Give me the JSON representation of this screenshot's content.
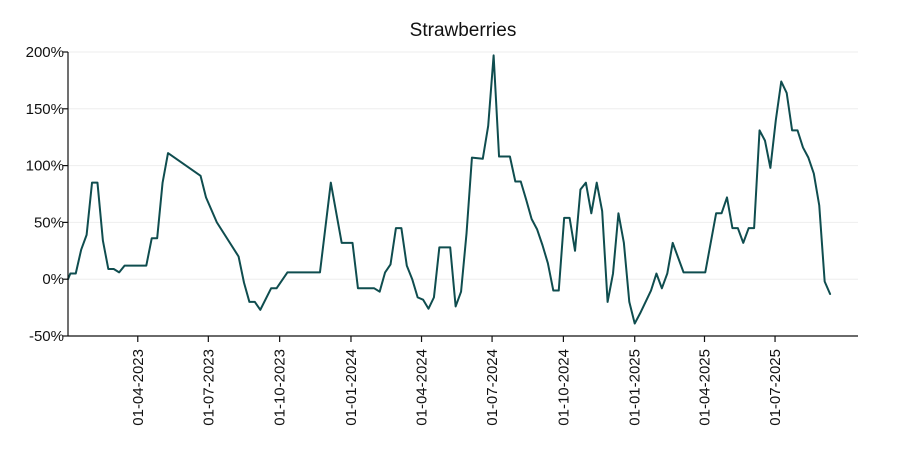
{
  "chart_data": {
    "type": "line",
    "title": "Strawberries",
    "xlabel": "",
    "ylabel": "",
    "y_unit": "%",
    "ylim": [
      -50,
      200
    ],
    "xlim": [
      "2023-01-01",
      "2025-10-16"
    ],
    "grid": {
      "horizontal": true,
      "vertical": false
    },
    "color": "#0f4d4f",
    "y_ticks": [
      {
        "value": -50,
        "label": "-50%"
      },
      {
        "value": 0,
        "label": "0%"
      },
      {
        "value": 50,
        "label": "50%"
      },
      {
        "value": 100,
        "label": "100%"
      },
      {
        "value": 150,
        "label": "150%"
      },
      {
        "value": 200,
        "label": "200%"
      }
    ],
    "x_ticks": [
      {
        "date": "2023-04-01",
        "label": "01-04-2023"
      },
      {
        "date": "2023-07-01",
        "label": "01-07-2023"
      },
      {
        "date": "2023-10-01",
        "label": "01-10-2023"
      },
      {
        "date": "2024-01-01",
        "label": "01-01-2024"
      },
      {
        "date": "2024-04-01",
        "label": "01-04-2024"
      },
      {
        "date": "2024-07-01",
        "label": "01-07-2024"
      },
      {
        "date": "2024-10-01",
        "label": "01-10-2024"
      },
      {
        "date": "2025-01-01",
        "label": "01-01-2025"
      },
      {
        "date": "2025-04-01",
        "label": "01-04-2025"
      },
      {
        "date": "2025-07-01",
        "label": "01-07-2025"
      }
    ],
    "series": [
      {
        "points": [
          [
            "2023-01-01",
            0
          ],
          [
            "2023-01-04",
            5
          ],
          [
            "2023-01-11",
            5
          ],
          [
            "2023-01-18",
            26
          ],
          [
            "2023-01-25",
            39
          ],
          [
            "2023-02-01",
            85
          ],
          [
            "2023-02-08",
            85
          ],
          [
            "2023-02-15",
            34
          ],
          [
            "2023-02-22",
            9
          ],
          [
            "2023-03-01",
            9
          ],
          [
            "2023-03-08",
            6
          ],
          [
            "2023-03-15",
            12
          ],
          [
            "2023-03-22",
            12
          ],
          [
            "2023-04-12",
            12
          ],
          [
            "2023-04-19",
            36
          ],
          [
            "2023-04-26",
            36
          ],
          [
            "2023-05-03",
            85
          ],
          [
            "2023-05-10",
            111
          ],
          [
            "2023-06-21",
            91
          ],
          [
            "2023-06-28",
            72
          ],
          [
            "2023-07-12",
            50
          ],
          [
            "2023-08-09",
            20
          ],
          [
            "2023-08-16",
            -3
          ],
          [
            "2023-08-23",
            -20
          ],
          [
            "2023-08-30",
            -20
          ],
          [
            "2023-09-06",
            -27
          ],
          [
            "2023-09-20",
            -8
          ],
          [
            "2023-09-27",
            -8
          ],
          [
            "2023-10-11",
            6
          ],
          [
            "2023-11-22",
            6
          ],
          [
            "2023-12-06",
            85
          ],
          [
            "2023-12-20",
            32
          ],
          [
            "2024-01-03",
            32
          ],
          [
            "2024-01-10",
            -8
          ],
          [
            "2024-01-31",
            -8
          ],
          [
            "2024-02-07",
            -11
          ],
          [
            "2024-02-14",
            6
          ],
          [
            "2024-02-21",
            13
          ],
          [
            "2024-02-28",
            45
          ],
          [
            "2024-03-06",
            45
          ],
          [
            "2024-03-13",
            12
          ],
          [
            "2024-03-20",
            0
          ],
          [
            "2024-03-27",
            -16
          ],
          [
            "2024-04-03",
            -18
          ],
          [
            "2024-04-10",
            -26
          ],
          [
            "2024-04-17",
            -16
          ],
          [
            "2024-04-24",
            28
          ],
          [
            "2024-05-08",
            28
          ],
          [
            "2024-05-15",
            -24
          ],
          [
            "2024-05-22",
            -11
          ],
          [
            "2024-05-29",
            40
          ],
          [
            "2024-06-05",
            107
          ],
          [
            "2024-06-19",
            106
          ],
          [
            "2024-06-26",
            135
          ],
          [
            "2024-07-03",
            197
          ],
          [
            "2024-07-10",
            108
          ],
          [
            "2024-07-24",
            108
          ],
          [
            "2024-07-31",
            86
          ],
          [
            "2024-08-07",
            86
          ],
          [
            "2024-08-14",
            70
          ],
          [
            "2024-08-21",
            53
          ],
          [
            "2024-08-28",
            44
          ],
          [
            "2024-09-04",
            30
          ],
          [
            "2024-09-11",
            14
          ],
          [
            "2024-09-18",
            -10
          ],
          [
            "2024-09-25",
            -10
          ],
          [
            "2024-10-02",
            54
          ],
          [
            "2024-10-09",
            54
          ],
          [
            "2024-10-16",
            25
          ],
          [
            "2024-10-23",
            79
          ],
          [
            "2024-10-30",
            85
          ],
          [
            "2024-11-06",
            58
          ],
          [
            "2024-11-13",
            85
          ],
          [
            "2024-11-20",
            60
          ],
          [
            "2024-11-27",
            -20
          ],
          [
            "2024-12-04",
            5
          ],
          [
            "2024-12-11",
            58
          ],
          [
            "2024-12-18",
            32
          ],
          [
            "2024-12-25",
            -20
          ],
          [
            "2025-01-01",
            -39
          ],
          [
            "2025-01-08",
            -30
          ],
          [
            "2025-01-22",
            -10
          ],
          [
            "2025-01-29",
            5
          ],
          [
            "2025-02-05",
            -8
          ],
          [
            "2025-02-12",
            5
          ],
          [
            "2025-02-19",
            32
          ],
          [
            "2025-03-05",
            6
          ],
          [
            "2025-04-02",
            6
          ],
          [
            "2025-04-16",
            58
          ],
          [
            "2025-04-23",
            58
          ],
          [
            "2025-04-30",
            72
          ],
          [
            "2025-05-07",
            45
          ],
          [
            "2025-05-14",
            45
          ],
          [
            "2025-05-21",
            32
          ],
          [
            "2025-05-28",
            45
          ],
          [
            "2025-06-04",
            45
          ],
          [
            "2025-06-11",
            131
          ],
          [
            "2025-06-18",
            122
          ],
          [
            "2025-06-25",
            98
          ],
          [
            "2025-07-02",
            140
          ],
          [
            "2025-07-09",
            174
          ],
          [
            "2025-07-16",
            164
          ],
          [
            "2025-07-23",
            131
          ],
          [
            "2025-07-30",
            131
          ],
          [
            "2025-08-06",
            116
          ],
          [
            "2025-08-13",
            107
          ],
          [
            "2025-08-20",
            93
          ],
          [
            "2025-08-27",
            65
          ],
          [
            "2025-09-03",
            -2
          ],
          [
            "2025-09-10",
            -13
          ]
        ]
      }
    ]
  }
}
